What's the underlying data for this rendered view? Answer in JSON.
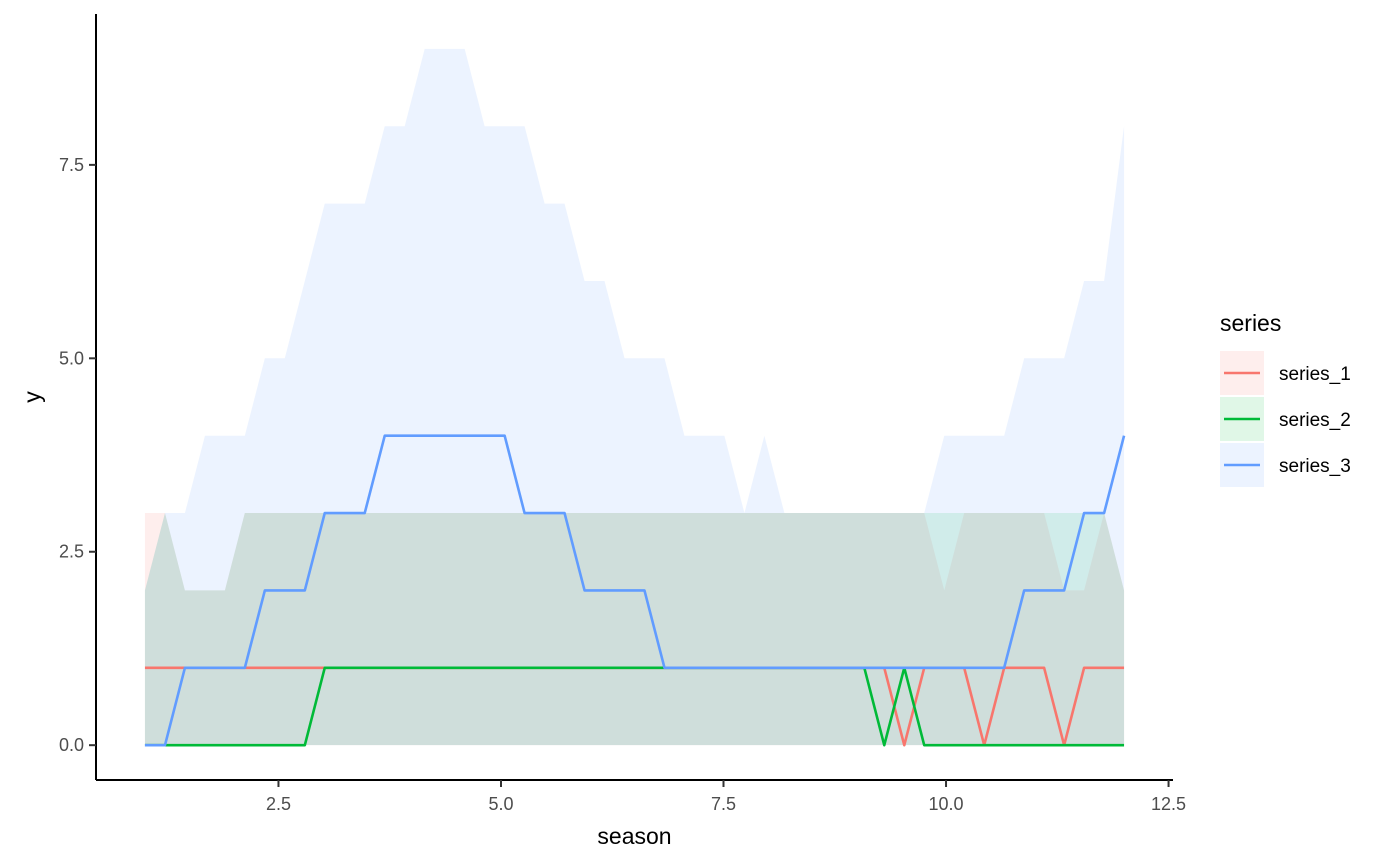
{
  "chart_data": {
    "type": "line",
    "xlabel": "season",
    "ylabel": "y",
    "xlim": [
      0.45,
      12.55
    ],
    "ylim": [
      -0.45,
      9.45
    ],
    "x_ticks": [
      2.5,
      5.0,
      7.5,
      10.0,
      12.5
    ],
    "x_tick_labels": [
      "2.5",
      "5.0",
      "7.5",
      "10.0",
      "12.5"
    ],
    "y_ticks": [
      0.0,
      2.5,
      5.0,
      7.5
    ],
    "y_tick_labels": [
      "0.0",
      "2.5",
      "5.0",
      "7.5"
    ],
    "grid": false,
    "legend": {
      "title": "series",
      "placement": "right"
    },
    "x": [
      1.0,
      1.225,
      1.449,
      1.674,
      1.898,
      2.122,
      2.347,
      2.571,
      2.796,
      3.02,
      3.245,
      3.469,
      3.694,
      3.918,
      4.143,
      4.367,
      4.592,
      4.816,
      5.041,
      5.265,
      5.49,
      5.714,
      5.939,
      6.163,
      6.388,
      6.612,
      6.837,
      7.061,
      7.286,
      7.51,
      7.735,
      7.959,
      8.184,
      8.408,
      8.633,
      8.857,
      9.082,
      9.306,
      9.531,
      9.755,
      9.98,
      10.204,
      10.429,
      10.653,
      10.878,
      11.102,
      11.327,
      11.551,
      11.776,
      12.0
    ],
    "series": [
      {
        "name": "series_1",
        "color": "#F8766D",
        "values": [
          1,
          1,
          1,
          1,
          1,
          1,
          1,
          1,
          1,
          1,
          1,
          1,
          1,
          1,
          1,
          1,
          1,
          1,
          1,
          1,
          1,
          1,
          1,
          1,
          1,
          1,
          1,
          1,
          1,
          1,
          1,
          1,
          1,
          1,
          1,
          1,
          1,
          1,
          0,
          1,
          1,
          1,
          0,
          1,
          1,
          1,
          0,
          1,
          1,
          1
        ],
        "band_lower": [
          0,
          0,
          0,
          0,
          0,
          0,
          0,
          0,
          0,
          0,
          0,
          0,
          0,
          0,
          0,
          0,
          0,
          0,
          0,
          0,
          0,
          0,
          0,
          0,
          0,
          0,
          0,
          0,
          0,
          0,
          0,
          0,
          0,
          0,
          0,
          0,
          0,
          0,
          0,
          0,
          0,
          0,
          0,
          0,
          0,
          0,
          0,
          0,
          0,
          0
        ],
        "band_upper": [
          3,
          3,
          2,
          2,
          2,
          3,
          3,
          3,
          3,
          3,
          3,
          3,
          3,
          3,
          3,
          3,
          3,
          3,
          3,
          3,
          3,
          3,
          3,
          3,
          3,
          3,
          3,
          3,
          3,
          3,
          3,
          3,
          3,
          3,
          3,
          3,
          3,
          3,
          3,
          3,
          2,
          3,
          3,
          3,
          3,
          3,
          2,
          2,
          3,
          2
        ]
      },
      {
        "name": "series_2",
        "color": "#00BA38",
        "values": [
          0,
          0,
          0,
          0,
          0,
          0,
          0,
          0,
          0,
          1,
          1,
          1,
          1,
          1,
          1,
          1,
          1,
          1,
          1,
          1,
          1,
          1,
          1,
          1,
          1,
          1,
          1,
          1,
          1,
          1,
          1,
          1,
          1,
          1,
          1,
          1,
          1,
          0,
          1,
          0,
          0,
          0,
          0,
          0,
          0,
          0,
          0,
          0,
          0,
          0
        ],
        "band_lower": [
          0,
          0,
          0,
          0,
          0,
          0,
          0,
          0,
          0,
          0,
          0,
          0,
          0,
          0,
          0,
          0,
          0,
          0,
          0,
          0,
          0,
          0,
          0,
          0,
          0,
          0,
          0,
          0,
          0,
          0,
          0,
          0,
          0,
          0,
          0,
          0,
          0,
          0,
          0,
          0,
          0,
          0,
          0,
          0,
          0,
          0,
          0,
          0,
          0,
          0
        ],
        "band_upper": [
          2,
          3,
          2,
          2,
          2,
          3,
          3,
          3,
          3,
          3,
          3,
          3,
          3,
          3,
          3,
          3,
          3,
          3,
          3,
          3,
          3,
          3,
          3,
          3,
          3,
          3,
          3,
          3,
          3,
          3,
          3,
          3,
          3,
          3,
          3,
          3,
          3,
          3,
          3,
          3,
          3,
          3,
          3,
          3,
          3,
          3,
          3,
          3,
          3,
          2
        ]
      },
      {
        "name": "series_3",
        "color": "#619CFF",
        "values": [
          0,
          0,
          1,
          1,
          1,
          1,
          2,
          2,
          2,
          3,
          3,
          3,
          4,
          4,
          4,
          4,
          4,
          4,
          4,
          3,
          3,
          3,
          2,
          2,
          2,
          2,
          1,
          1,
          1,
          1,
          1,
          1,
          1,
          1,
          1,
          1,
          1,
          1,
          1,
          1,
          1,
          1,
          1,
          1,
          2,
          2,
          2,
          3,
          3,
          4
        ],
        "band_lower": [
          0,
          0,
          0,
          0,
          0,
          0,
          0,
          0,
          0,
          0,
          0,
          0,
          0,
          0,
          0,
          0,
          0,
          0,
          0,
          0,
          0,
          0,
          0,
          0,
          0,
          0,
          0,
          0,
          0,
          0,
          0,
          0,
          0,
          0,
          0,
          0,
          0,
          0,
          0,
          0,
          0,
          0,
          0,
          0,
          0,
          0,
          0,
          0,
          0,
          0
        ],
        "band_upper": [
          2,
          3,
          3,
          4,
          4,
          4,
          5,
          5,
          6,
          7,
          7,
          7,
          8,
          8,
          9,
          9,
          9,
          8,
          8,
          8,
          7,
          7,
          6,
          6,
          5,
          5,
          5,
          4,
          4,
          4,
          3,
          4,
          3,
          3,
          3,
          3,
          3,
          3,
          3,
          3,
          4,
          4,
          4,
          4,
          5,
          5,
          5,
          6,
          6,
          8
        ]
      }
    ]
  }
}
